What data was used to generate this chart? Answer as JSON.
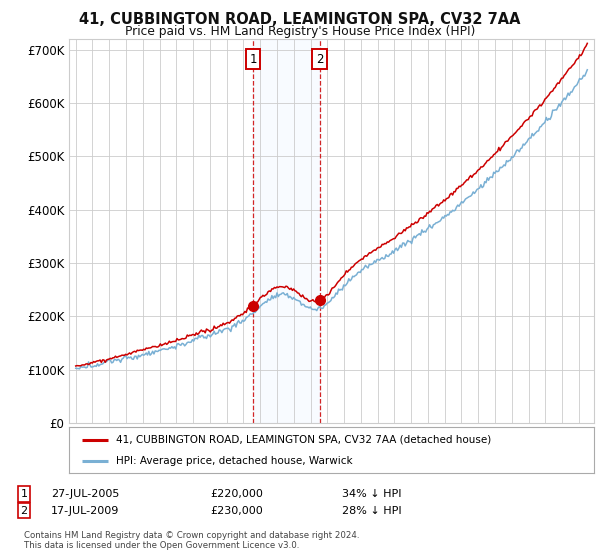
{
  "title": "41, CUBBINGTON ROAD, LEAMINGTON SPA, CV32 7AA",
  "subtitle": "Price paid vs. HM Land Registry's House Price Index (HPI)",
  "legend_label_red": "41, CUBBINGTON ROAD, LEAMINGTON SPA, CV32 7AA (detached house)",
  "legend_label_blue": "HPI: Average price, detached house, Warwick",
  "footnote": "Contains HM Land Registry data © Crown copyright and database right 2024.\nThis data is licensed under the Open Government Licence v3.0.",
  "sale1_date": "27-JUL-2005",
  "sale1_price": "£220,000",
  "sale1_hpi": "34% ↓ HPI",
  "sale1_year": 2005.57,
  "sale1_value": 220000,
  "sale2_date": "17-JUL-2009",
  "sale2_price": "£230,000",
  "sale2_hpi": "28% ↓ HPI",
  "sale2_year": 2009.54,
  "sale2_value": 230000,
  "ylim": [
    0,
    720000
  ],
  "yticks": [
    0,
    100000,
    200000,
    300000,
    400000,
    500000,
    600000,
    700000
  ],
  "ytick_labels": [
    "£0",
    "£100K",
    "£200K",
    "£300K",
    "£400K",
    "£500K",
    "£600K",
    "£700K"
  ],
  "bg_color": "#ffffff",
  "grid_color": "#cccccc",
  "red_color": "#cc0000",
  "blue_color": "#7ab0d4",
  "shade_color": "#ddeeff"
}
